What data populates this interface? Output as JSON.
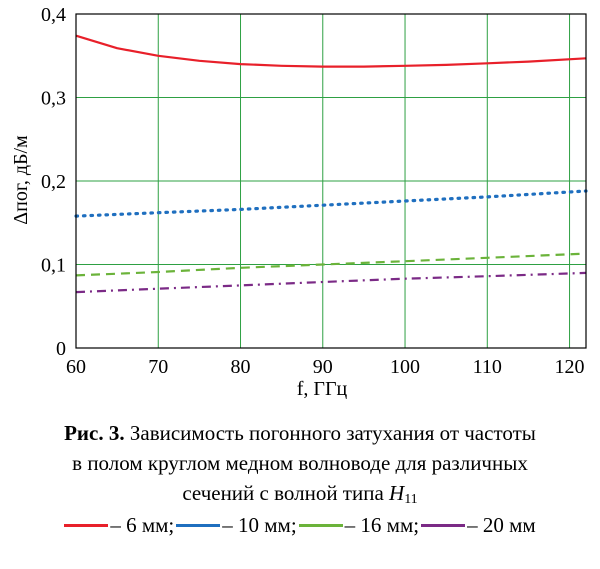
{
  "chart_data": {
    "type": "line",
    "xlabel": "f, ГГц",
    "ylabel": "Δпог, дБ/м",
    "xlim": [
      60,
      122
    ],
    "ylim": [
      0,
      0.4
    ],
    "x_ticks": [
      "60",
      "70",
      "80",
      "90",
      "100",
      "110",
      "120"
    ],
    "x_tick_values": [
      60,
      70,
      80,
      90,
      100,
      110,
      120
    ],
    "y_ticks": [
      "0",
      "0,1",
      "0,2",
      "0,3",
      "0,4"
    ],
    "y_tick_values": [
      0,
      0.1,
      0.2,
      0.3,
      0.4
    ],
    "grid": true,
    "series": [
      {
        "name": "– 6 мм",
        "color": "#e8202a",
        "style": "solid",
        "x": [
          60,
          65,
          70,
          75,
          80,
          85,
          90,
          95,
          100,
          105,
          110,
          115,
          122
        ],
        "y": [
          0.374,
          0.359,
          0.35,
          0.344,
          0.34,
          0.338,
          0.337,
          0.337,
          0.338,
          0.339,
          0.341,
          0.343,
          0.347
        ]
      },
      {
        "name": "– 10 мм",
        "color": "#1f6fbf",
        "style": "dotted",
        "x": [
          60,
          70,
          80,
          90,
          100,
          110,
          122
        ],
        "y": [
          0.158,
          0.162,
          0.166,
          0.171,
          0.176,
          0.181,
          0.188
        ]
      },
      {
        "name": "– 16 мм",
        "color": "#6bb33a",
        "style": "dashed",
        "x": [
          60,
          70,
          80,
          90,
          100,
          110,
          122
        ],
        "y": [
          0.087,
          0.091,
          0.096,
          0.1,
          0.104,
          0.108,
          0.113
        ]
      },
      {
        "name": "– 20 мм",
        "color": "#7b2a86",
        "style": "dashdot",
        "x": [
          60,
          70,
          80,
          90,
          100,
          110,
          122
        ],
        "y": [
          0.067,
          0.071,
          0.075,
          0.079,
          0.083,
          0.086,
          0.09
        ]
      }
    ]
  },
  "caption": {
    "bold": "Рис. 3.",
    "line1": " Зависимость погонного затухания от частоты",
    "line2": "в полом круглом медном волноводе для различных",
    "line3": "сечений с волной типа ",
    "symbol": "H",
    "symbol_sub": "11"
  },
  "legend_separator": ";"
}
